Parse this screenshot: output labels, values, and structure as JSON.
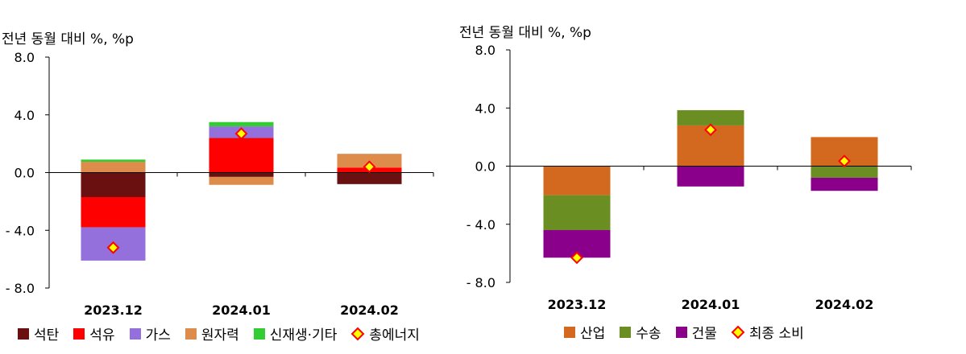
{
  "chart_data": [
    {
      "type": "stacked-bar",
      "unit_label": "전년 동월 대비 %, %p",
      "categories": [
        "2023.12",
        "2024.01",
        "2024.02"
      ],
      "y_ticks": [
        "8.0",
        "4.0",
        "0.0",
        "- 4.0",
        "- 8.0"
      ],
      "y_tick_values": [
        8,
        4,
        0,
        -4,
        -8
      ],
      "ylim": [
        -8,
        8
      ],
      "series": [
        {
          "name": "석탄",
          "color": "#6b1010",
          "values": [
            -1.7,
            -0.3,
            -0.8
          ]
        },
        {
          "name": "석유",
          "color": "#ff0000",
          "values": [
            -2.1,
            2.4,
            0.35
          ]
        },
        {
          "name": "가스",
          "color": "#9370db",
          "values": [
            -2.3,
            0.8,
            0.0
          ]
        },
        {
          "name": "원자력",
          "color": "#de8c4b",
          "values": [
            0.75,
            -0.55,
            0.95
          ]
        },
        {
          "name": "신재생·기타",
          "color": "#33cc33",
          "values": [
            0.15,
            0.3,
            0.0
          ]
        }
      ],
      "total": {
        "name": "총에너지",
        "values": [
          -5.2,
          2.7,
          0.4
        ]
      }
    },
    {
      "type": "stacked-bar",
      "unit_label": "전년 동월 대비 %, %p",
      "categories": [
        "2023.12",
        "2024.01",
        "2024.02"
      ],
      "y_ticks": [
        "8.0",
        "4.0",
        "0.0",
        "- 4.0",
        "- 8.0"
      ],
      "y_tick_values": [
        8,
        4,
        0,
        -4,
        -8
      ],
      "ylim": [
        -8,
        8
      ],
      "series": [
        {
          "name": "산업",
          "color": "#d2691e",
          "values": [
            -2.0,
            2.8,
            2.0
          ]
        },
        {
          "name": "수송",
          "color": "#6b8e23",
          "values": [
            -2.4,
            1.05,
            -0.8
          ]
        },
        {
          "name": "건물",
          "color": "#8b008b",
          "values": [
            -1.9,
            -1.4,
            -0.9
          ]
        }
      ],
      "total": {
        "name": "최종 소비",
        "values": [
          -6.3,
          2.5,
          0.35
        ]
      }
    }
  ]
}
